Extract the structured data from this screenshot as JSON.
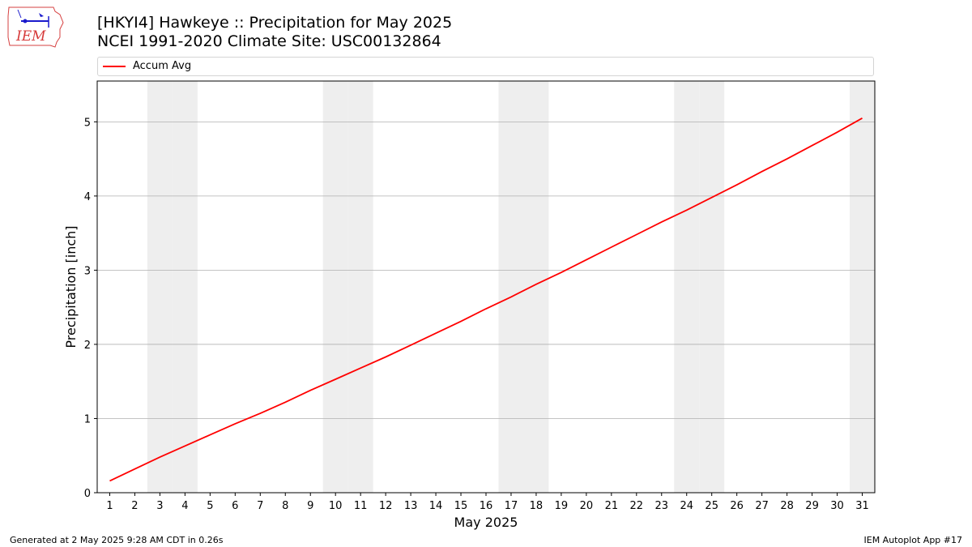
{
  "header": {
    "title_line1": "[HKYI4] Hawkeye :: Precipitation for May 2025",
    "title_line2": "NCEI 1991-2020 Climate Site: USC00132864"
  },
  "logo": {
    "text": "IEM",
    "icon": "iem-iowa-logo-icon"
  },
  "legend": {
    "entries": [
      {
        "label": "Accum Avg",
        "color": "#ff0000"
      }
    ],
    "placement": "top"
  },
  "footer": {
    "left": "Generated at 2 May 2025 9:28 AM CDT in 0.26s",
    "right": "IEM Autoplot App #17"
  },
  "colors": {
    "line": "#ff0000",
    "weekend_band": "#eeeeee",
    "grid": "#b0b0b0"
  },
  "chart_data": {
    "type": "line",
    "title": "[HKYI4] Hawkeye :: Precipitation for May 2025",
    "subtitle": "NCEI 1991-2020 Climate Site: USC00132864",
    "xlabel": "May 2025",
    "ylabel": "Precipitation [inch]",
    "xlim": [
      0.5,
      31.5
    ],
    "ylim": [
      0,
      5.55
    ],
    "xticks": [
      1,
      2,
      3,
      4,
      5,
      6,
      7,
      8,
      9,
      10,
      11,
      12,
      13,
      14,
      15,
      16,
      17,
      18,
      19,
      20,
      21,
      22,
      23,
      24,
      25,
      26,
      27,
      28,
      29,
      30,
      31
    ],
    "yticks": [
      0,
      1,
      2,
      3,
      4,
      5
    ],
    "grid": "y-axis",
    "shaded_days": [
      3,
      4,
      10,
      11,
      17,
      18,
      24,
      25,
      31
    ],
    "series": [
      {
        "name": "Accum Avg",
        "x": [
          1,
          2,
          3,
          4,
          5,
          6,
          7,
          8,
          9,
          10,
          11,
          12,
          13,
          14,
          15,
          16,
          17,
          18,
          19,
          20,
          21,
          22,
          23,
          24,
          25,
          26,
          27,
          28,
          29,
          30,
          31
        ],
        "values": [
          0.16,
          0.32,
          0.48,
          0.63,
          0.78,
          0.93,
          1.07,
          1.22,
          1.38,
          1.53,
          1.68,
          1.83,
          1.99,
          2.15,
          2.31,
          2.48,
          2.64,
          2.81,
          2.97,
          3.14,
          3.31,
          3.48,
          3.65,
          3.81,
          3.98,
          4.15,
          4.33,
          4.5,
          4.68,
          4.86,
          5.05
        ]
      }
    ]
  }
}
